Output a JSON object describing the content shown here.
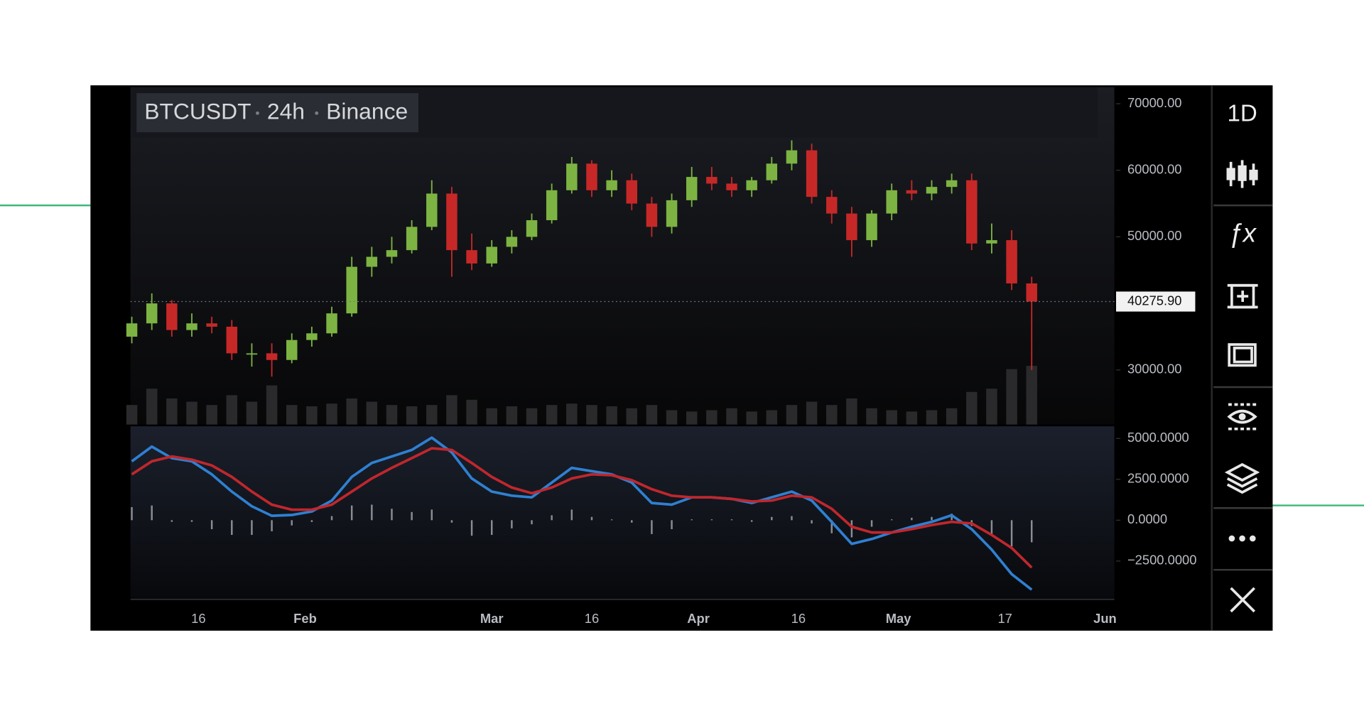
{
  "header": {
    "symbol": "BTCUSDT",
    "interval": "24h",
    "exchange": "Binance"
  },
  "toolbar": {
    "period": "1D",
    "indicators": "ƒx"
  },
  "chart_data": [
    {
      "type": "candlestick",
      "x": [
        6,
        9,
        12,
        15,
        18,
        21,
        24,
        27,
        30,
        33,
        36,
        39,
        42,
        45,
        48,
        51,
        54,
        57,
        60,
        63,
        66,
        69,
        72,
        75,
        78,
        81,
        84,
        87,
        90,
        93,
        96,
        99,
        102,
        105,
        108,
        111,
        114,
        117,
        120,
        123,
        126,
        129,
        132,
        135,
        138,
        141
      ],
      "open": [
        35000,
        37000,
        40000,
        36000,
        37000,
        36500,
        32500,
        32500,
        31500,
        34500,
        35500,
        38500,
        45500,
        47000,
        48000,
        51500,
        56500,
        48000,
        46000,
        48500,
        50000,
        52500,
        57000,
        61000,
        57000,
        58500,
        55000,
        51500,
        55500,
        59000,
        58000,
        57000,
        58500,
        61000,
        63000,
        56000,
        53500,
        49500,
        53500,
        57000,
        56500,
        57500,
        58500,
        49000,
        49500,
        43000
      ],
      "high": [
        38000,
        41500,
        40500,
        38500,
        38000,
        37500,
        34000,
        34000,
        35500,
        36500,
        39500,
        47000,
        48500,
        50000,
        52500,
        58500,
        57500,
        50500,
        49500,
        51000,
        53500,
        58000,
        62000,
        61500,
        60000,
        59500,
        56000,
        56500,
        60500,
        60500,
        59000,
        59000,
        62000,
        64500,
        64000,
        57000,
        54500,
        54000,
        58000,
        58500,
        58500,
        59500,
        59500,
        52000,
        51000,
        44000
      ],
      "low": [
        34000,
        36000,
        35000,
        35000,
        35500,
        31500,
        30500,
        29000,
        31000,
        33500,
        35000,
        38000,
        44000,
        46000,
        47500,
        51000,
        44000,
        45000,
        45500,
        47500,
        49500,
        52000,
        56500,
        56000,
        56000,
        54000,
        50000,
        50500,
        54500,
        57000,
        56000,
        56000,
        58000,
        60000,
        55000,
        52000,
        47000,
        48500,
        52500,
        55500,
        55500,
        56500,
        48000,
        47500,
        42000,
        30000
      ],
      "close": [
        37000,
        40000,
        36000,
        37000,
        36500,
        32500,
        32500,
        31500,
        34500,
        35500,
        38500,
        45500,
        47000,
        48000,
        51500,
        56500,
        48000,
        46000,
        48500,
        50000,
        52500,
        57000,
        61000,
        57000,
        58500,
        55000,
        51500,
        55500,
        59000,
        58000,
        57000,
        58500,
        61000,
        63000,
        56000,
        53500,
        49500,
        53500,
        57000,
        56500,
        57500,
        58500,
        49000,
        49500,
        43000,
        40275.9
      ],
      "volume": [
        30,
        55,
        40,
        35,
        30,
        45,
        35,
        60,
        30,
        28,
        32,
        40,
        35,
        30,
        28,
        30,
        45,
        38,
        25,
        28,
        25,
        30,
        32,
        30,
        28,
        25,
        30,
        22,
        20,
        22,
        25,
        20,
        22,
        30,
        35,
        30,
        40,
        25,
        22,
        20,
        22,
        25,
        50,
        55,
        85,
        90
      ],
      "volume_lim": [
        0,
        100
      ],
      "up_color": "#7cb342",
      "down_color": "#c62828",
      "volume_color": "#2a2a2c",
      "xlim": [
        5.8,
        153.4
      ],
      "ylim": [
        21800,
        72500
      ],
      "yticks": [
        {
          "value": 70000,
          "label": "70000.00"
        },
        {
          "value": 60000,
          "label": "60000.00"
        },
        {
          "value": 50000,
          "label": "50000.00"
        },
        {
          "value": 30000,
          "label": "30000.00"
        }
      ],
      "price_line": {
        "value": 40275.9,
        "label": "40275.90"
      }
    },
    {
      "type": "macd",
      "x": [
        6,
        9,
        12,
        15,
        18,
        21,
        24,
        27,
        30,
        33,
        36,
        39,
        42,
        45,
        48,
        51,
        54,
        57,
        60,
        63,
        66,
        69,
        72,
        75,
        78,
        81,
        84,
        87,
        90,
        93,
        96,
        99,
        102,
        105,
        108,
        111,
        114,
        117,
        120,
        123,
        126,
        129,
        132,
        135,
        138,
        141
      ],
      "series": [
        {
          "color": "#2f80d1",
          "values": [
            3600,
            4500,
            3800,
            3600,
            2800,
            1750,
            850,
            270,
            320,
            530,
            1200,
            2650,
            3500,
            3900,
            4300,
            5050,
            4150,
            2550,
            1750,
            1500,
            1400,
            2300,
            3200,
            3000,
            2800,
            2300,
            1050,
            950,
            1400,
            1400,
            1300,
            1050,
            1400,
            1750,
            1200,
            -100,
            -1450,
            -1150,
            -750,
            -400,
            -100,
            300,
            -550,
            -1800,
            -3300,
            -4250
          ]
        },
        {
          "color": "#c0272d",
          "values": [
            2800,
            3600,
            3900,
            3700,
            3350,
            2650,
            1750,
            950,
            640,
            640,
            950,
            1750,
            2550,
            3200,
            3800,
            4400,
            4300,
            3500,
            2650,
            2000,
            1650,
            2000,
            2550,
            2800,
            2750,
            2450,
            1900,
            1500,
            1400,
            1400,
            1300,
            1150,
            1200,
            1500,
            1400,
            700,
            -400,
            -750,
            -750,
            -550,
            -300,
            -100,
            -200,
            -900,
            -1700,
            -2900
          ]
        }
      ],
      "histogram": [
        800,
        900,
        -100,
        -100,
        -550,
        -900,
        -900,
        -680,
        -320,
        -110,
        250,
        900,
        950,
        700,
        500,
        650,
        -150,
        -950,
        -900,
        -500,
        -250,
        300,
        650,
        200,
        50,
        -150,
        -850,
        -550,
        0,
        0,
        0,
        -100,
        200,
        250,
        -200,
        -800,
        -1050,
        -400,
        0,
        150,
        200,
        400,
        -350,
        -900,
        -1600,
        -1350
      ],
      "histogram_color": "#8a8d94",
      "xlim": [
        5.8,
        153.4
      ],
      "ylim": [
        -4790,
        5745
      ],
      "yticks": [
        {
          "value": 5000,
          "label": "5000.0000"
        },
        {
          "value": 2500,
          "label": "2500.0000"
        },
        {
          "value": 0,
          "label": "0.0000"
        },
        {
          "value": -2500,
          "label": "−2500.0000"
        }
      ],
      "xticks": [
        {
          "value": 16,
          "label": "16"
        },
        {
          "value": 32,
          "label": "Feb"
        },
        {
          "value": 60,
          "label": "Mar"
        },
        {
          "value": 75,
          "label": "16"
        },
        {
          "value": 91,
          "label": "Apr"
        },
        {
          "value": 106,
          "label": "16"
        },
        {
          "value": 121,
          "label": "May"
        },
        {
          "value": 137,
          "label": "17"
        },
        {
          "value": 152,
          "label": "Jun"
        }
      ]
    }
  ]
}
